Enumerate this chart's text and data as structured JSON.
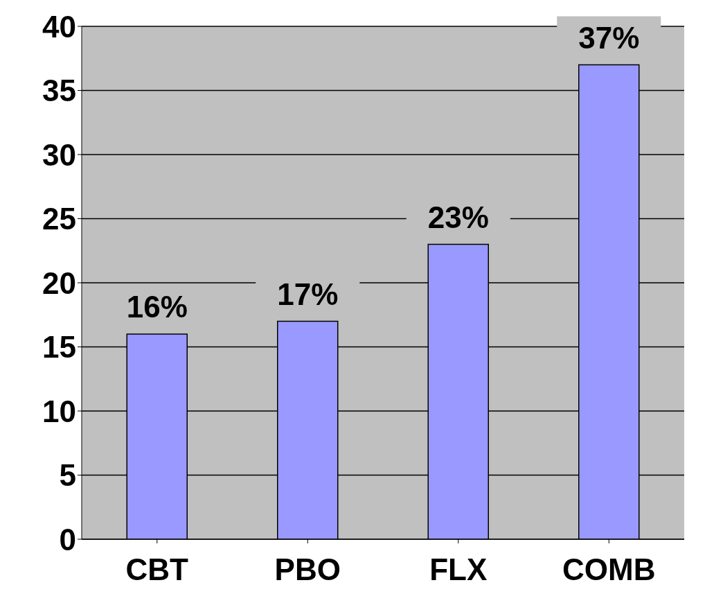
{
  "chart_data": {
    "type": "bar",
    "categories": [
      "CBT",
      "PBO",
      "FLX",
      "COMB"
    ],
    "values": [
      16,
      17,
      23,
      37
    ],
    "value_labels": [
      "16%",
      "17%",
      "23%",
      "37%"
    ],
    "color": "#9999ff",
    "ylim": [
      0,
      40
    ],
    "yticks": [
      0,
      5,
      10,
      15,
      20,
      25,
      30,
      35,
      40
    ],
    "grid": "y"
  }
}
